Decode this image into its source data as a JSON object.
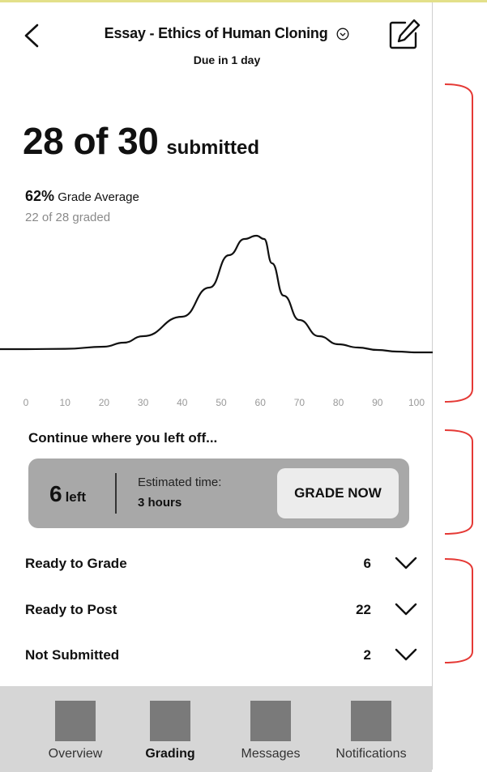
{
  "header": {
    "title": "Essay - Ethics of Human Cloning",
    "due": "Due in 1 day"
  },
  "summary": {
    "submitted_count": "28 of 30",
    "submitted_label": "submitted",
    "grade_average_pct": "62%",
    "grade_average_label": "Grade Average",
    "graded": "22 of 28 graded"
  },
  "chart_data": {
    "type": "area",
    "x_ticks": [
      "0",
      "10",
      "20",
      "30",
      "40",
      "50",
      "60",
      "70",
      "80",
      "90",
      "100"
    ],
    "xlim": [
      0,
      100
    ],
    "series": [
      {
        "x": [
          0,
          10,
          20,
          25,
          30,
          40,
          47,
          52,
          56,
          59,
          61,
          63,
          66,
          70,
          75,
          80,
          85,
          90,
          95,
          100
        ],
        "y": [
          2,
          2.2,
          3.5,
          6,
          10,
          22,
          40,
          60,
          70,
          72,
          70,
          55,
          35,
          20,
          10,
          5,
          3,
          1.5,
          0.5,
          0
        ]
      }
    ],
    "grid": false
  },
  "continue": {
    "heading": "Continue where you left off...",
    "left_number": "6",
    "left_word": "left",
    "estimated_label": "Estimated time:",
    "estimated_value": "3 hours",
    "grade_now_button": "GRADE NOW"
  },
  "status_list": [
    {
      "label": "Ready to Grade",
      "count": "6"
    },
    {
      "label": "Ready to Post",
      "count": "22"
    },
    {
      "label": "Not Submitted",
      "count": "2"
    }
  ],
  "bottom_nav": [
    {
      "label": "Overview",
      "active": false,
      "icon": "overview-icon"
    },
    {
      "label": "Grading",
      "active": true,
      "icon": "grading-icon"
    },
    {
      "label": "Messages",
      "active": false,
      "icon": "messages-icon"
    },
    {
      "label": "Notifications",
      "active": false,
      "icon": "notifications-icon"
    }
  ],
  "colors": {
    "annotation": "#e53935",
    "card": "#a8a8a8",
    "nav_bar": "#d6d6d6",
    "nav_icon": "#7a7a7a"
  }
}
